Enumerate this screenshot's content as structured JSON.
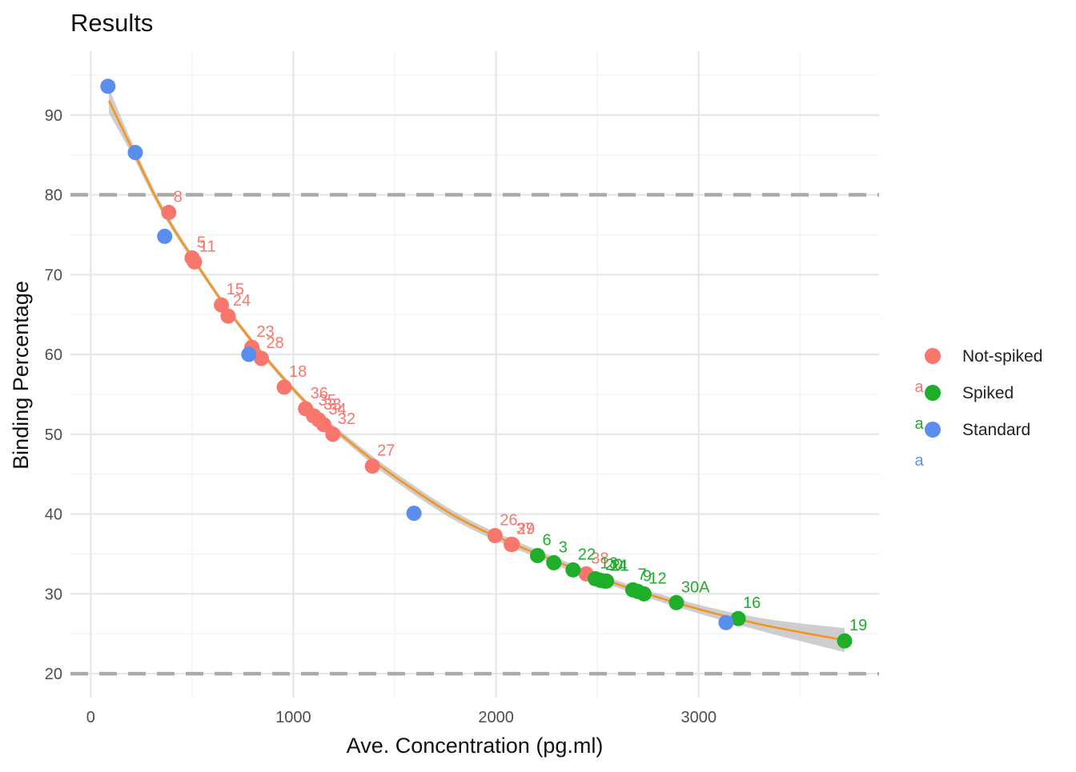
{
  "colors": {
    "not_spiked": "#F8766D",
    "spiked": "#1FAE2A",
    "standard": "#5B8DEF",
    "fit_line": "#F5951F",
    "ribbon": "#BEBEBE",
    "hline": "#AAAAAA",
    "grid_major": "#E6E6E6",
    "grid_minor": "#F1F1F1",
    "text": "#222222",
    "tick_text": "#4D4D4D"
  },
  "chart_data": {
    "type": "scatter",
    "title": "Results",
    "xlabel": "Ave. Concentration (pg.ml)",
    "ylabel": "Binding Percentage",
    "xlim": [
      -100,
      3890
    ],
    "ylim": [
      17,
      98
    ],
    "x_ticks": [
      0,
      1000,
      2000,
      3000
    ],
    "y_ticks": [
      20,
      30,
      40,
      50,
      60,
      70,
      80,
      90
    ],
    "x_minor_ticks": [
      500,
      1500,
      2500,
      3500
    ],
    "y_minor_ticks": [
      25,
      35,
      45,
      55,
      65,
      75,
      85,
      95
    ],
    "grid": true,
    "legend_position": "right",
    "reference_lines": [
      80,
      20
    ],
    "legend": [
      {
        "label": "Not-spiked",
        "series": "not_spiked"
      },
      {
        "label": "Spiked",
        "series": "spiked"
      },
      {
        "label": "Standard",
        "series": "standard"
      }
    ],
    "legend_key_text": "a",
    "series": [
      {
        "name": "Not-spiked",
        "key": "not_spiked",
        "points": [
          {
            "x": 385,
            "y": 77.8,
            "label": "8"
          },
          {
            "x": 500,
            "y": 72.1,
            "label": "5"
          },
          {
            "x": 512,
            "y": 71.6,
            "label": "11"
          },
          {
            "x": 645,
            "y": 66.2,
            "label": "15"
          },
          {
            "x": 678,
            "y": 64.8,
            "label": "24"
          },
          {
            "x": 795,
            "y": 60.9,
            "label": "23"
          },
          {
            "x": 842,
            "y": 59.5,
            "label": "28"
          },
          {
            "x": 955,
            "y": 55.9,
            "label": "18"
          },
          {
            "x": 1060,
            "y": 53.2,
            "label": "36"
          },
          {
            "x": 1100,
            "y": 52.3,
            "label": "35"
          },
          {
            "x": 1125,
            "y": 51.8,
            "label": "33"
          },
          {
            "x": 1150,
            "y": 51.2,
            "label": "34"
          },
          {
            "x": 1195,
            "y": 50.0,
            "label": "32"
          },
          {
            "x": 1390,
            "y": 46.0,
            "label": "27"
          },
          {
            "x": 1995,
            "y": 37.3,
            "label": "26"
          },
          {
            "x": 2075,
            "y": 36.2,
            "label": "37"
          },
          {
            "x": 2080,
            "y": 36.2,
            "label": "29"
          },
          {
            "x": 2445,
            "y": 32.5,
            "label": "38"
          }
        ]
      },
      {
        "name": "Spiked",
        "key": "spiked",
        "points": [
          {
            "x": 2205,
            "y": 34.8,
            "label": "6"
          },
          {
            "x": 2285,
            "y": 33.9,
            "label": "3"
          },
          {
            "x": 2380,
            "y": 33.0,
            "label": "22"
          },
          {
            "x": 2490,
            "y": 31.9,
            "label": "13"
          },
          {
            "x": 2515,
            "y": 31.7,
            "label": "20"
          },
          {
            "x": 2535,
            "y": 31.6,
            "label": "14"
          },
          {
            "x": 2545,
            "y": 31.6,
            "label": "21"
          },
          {
            "x": 2675,
            "y": 30.5,
            "label": "7"
          },
          {
            "x": 2700,
            "y": 30.3,
            "label": "9"
          },
          {
            "x": 2730,
            "y": 30.0,
            "label": "12"
          },
          {
            "x": 2890,
            "y": 28.9,
            "label": "30A"
          },
          {
            "x": 3195,
            "y": 26.9,
            "label": "16"
          },
          {
            "x": 3720,
            "y": 24.1,
            "label": "19"
          }
        ]
      },
      {
        "name": "Standard",
        "key": "standard",
        "points": [
          {
            "x": 85,
            "y": 93.6
          },
          {
            "x": 220,
            "y": 85.3
          },
          {
            "x": 365,
            "y": 74.8
          },
          {
            "x": 780,
            "y": 60.0
          },
          {
            "x": 1595,
            "y": 40.1
          },
          {
            "x": 3135,
            "y": 26.4
          }
        ]
      }
    ],
    "fit": {
      "x": [
        90,
        200,
        350,
        500,
        700,
        900,
        1100,
        1300,
        1500,
        1800,
        2100,
        2500,
        2900,
        3300,
        3720
      ],
      "y": [
        91.8,
        86.0,
        78.3,
        72.2,
        64.8,
        58.5,
        53.0,
        48.6,
        44.7,
        39.7,
        36.1,
        32.1,
        28.8,
        26.2,
        24.2
      ],
      "se": [
        1.6,
        0.8,
        0.5,
        0.4,
        0.35,
        0.35,
        0.35,
        0.45,
        0.55,
        0.55,
        0.5,
        0.45,
        0.5,
        0.8,
        1.5
      ]
    }
  }
}
